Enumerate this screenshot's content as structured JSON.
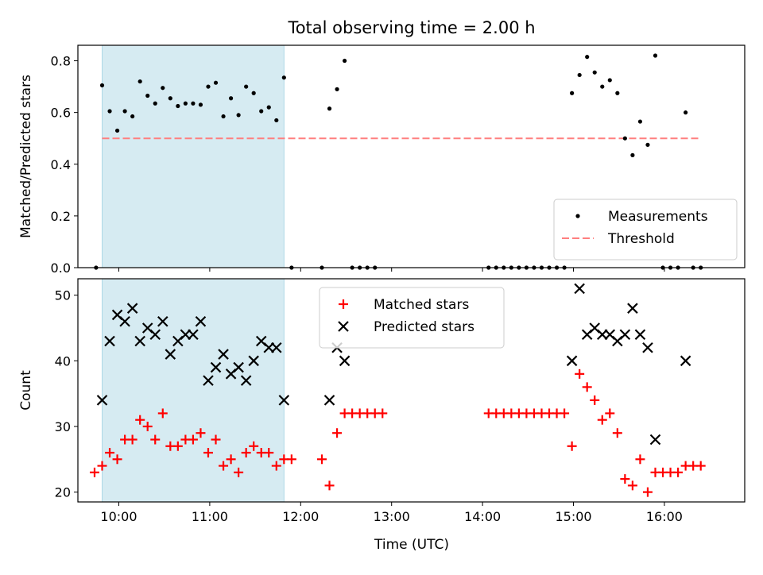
{
  "chart_data": {
    "title": "Total observing time = 2.00 h",
    "xlabel": "Time (UTC)",
    "x_ticks": [
      "10:00",
      "11:00",
      "12:00",
      "13:00",
      "14:00",
      "15:00",
      "16:00"
    ],
    "x_range": [
      "09:33",
      "16:53"
    ],
    "highlight_span": [
      "09:49",
      "11:49"
    ],
    "panels": [
      {
        "type": "scatter",
        "ylabel": "Matched/Predicted stars",
        "ylim": [
          0,
          0.86
        ],
        "y_ticks": [
          "0.0",
          "0.2",
          "0.4",
          "0.6",
          "0.8"
        ],
        "legend_position": "lower-right",
        "threshold": {
          "name": "Threshold",
          "value": 0.5,
          "x_range": [
            "09:49",
            "16:23"
          ],
          "color": "#ff7f7f"
        },
        "series": [
          {
            "name": "Measurements",
            "marker": "dot",
            "color": "#000000",
            "points": [
              [
                "09:45",
                0.0
              ],
              [
                "09:49",
                0.705
              ],
              [
                "09:54",
                0.605
              ],
              [
                "09:59",
                0.53
              ],
              [
                "10:04",
                0.605
              ],
              [
                "10:09",
                0.585
              ],
              [
                "10:14",
                0.72
              ],
              [
                "10:19",
                0.665
              ],
              [
                "10:24",
                0.635
              ],
              [
                "10:29",
                0.695
              ],
              [
                "10:34",
                0.655
              ],
              [
                "10:39",
                0.625
              ],
              [
                "10:44",
                0.635
              ],
              [
                "10:49",
                0.635
              ],
              [
                "10:54",
                0.63
              ],
              [
                "10:59",
                0.7
              ],
              [
                "11:04",
                0.715
              ],
              [
                "11:09",
                0.585
              ],
              [
                "11:14",
                0.655
              ],
              [
                "11:19",
                0.59
              ],
              [
                "11:24",
                0.7
              ],
              [
                "11:29",
                0.675
              ],
              [
                "11:34",
                0.605
              ],
              [
                "11:39",
                0.62
              ],
              [
                "11:44",
                0.57
              ],
              [
                "11:49",
                0.735
              ],
              [
                "11:54",
                0.0
              ],
              [
                "12:14",
                0.0
              ],
              [
                "12:19",
                0.615
              ],
              [
                "12:24",
                0.69
              ],
              [
                "12:29",
                0.8
              ],
              [
                "12:34",
                0.0
              ],
              [
                "12:39",
                0.0
              ],
              [
                "12:44",
                0.0
              ],
              [
                "12:49",
                0.0
              ],
              [
                "14:04",
                0.0
              ],
              [
                "14:09",
                0.0
              ],
              [
                "14:14",
                0.0
              ],
              [
                "14:19",
                0.0
              ],
              [
                "14:24",
                0.0
              ],
              [
                "14:29",
                0.0
              ],
              [
                "14:34",
                0.0
              ],
              [
                "14:39",
                0.0
              ],
              [
                "14:44",
                0.0
              ],
              [
                "14:49",
                0.0
              ],
              [
                "14:54",
                0.0
              ],
              [
                "14:59",
                0.675
              ],
              [
                "15:04",
                0.745
              ],
              [
                "15:09",
                0.815
              ],
              [
                "15:14",
                0.755
              ],
              [
                "15:19",
                0.7
              ],
              [
                "15:24",
                0.725
              ],
              [
                "15:29",
                0.675
              ],
              [
                "15:34",
                0.5
              ],
              [
                "15:39",
                0.435
              ],
              [
                "15:44",
                0.565
              ],
              [
                "15:49",
                0.475
              ],
              [
                "15:54",
                0.82
              ],
              [
                "15:59",
                0.0
              ],
              [
                "16:04",
                0.0
              ],
              [
                "16:09",
                0.0
              ],
              [
                "16:14",
                0.6
              ],
              [
                "16:19",
                0.0
              ],
              [
                "16:24",
                0.0
              ]
            ]
          }
        ]
      },
      {
        "type": "scatter",
        "ylabel": "Count",
        "ylim": [
          18.5,
          52.5
        ],
        "y_ticks": [
          "20",
          "30",
          "40",
          "50"
        ],
        "legend_position": "upper-center",
        "series": [
          {
            "name": "Matched stars",
            "marker": "plus",
            "color": "#ff0000",
            "points": [
              [
                "09:44",
                23
              ],
              [
                "09:49",
                24
              ],
              [
                "09:54",
                26
              ],
              [
                "09:59",
                25
              ],
              [
                "10:04",
                28
              ],
              [
                "10:09",
                28
              ],
              [
                "10:14",
                31
              ],
              [
                "10:19",
                30
              ],
              [
                "10:24",
                28
              ],
              [
                "10:29",
                32
              ],
              [
                "10:34",
                27
              ],
              [
                "10:39",
                27
              ],
              [
                "10:44",
                28
              ],
              [
                "10:49",
                28
              ],
              [
                "10:54",
                29
              ],
              [
                "10:59",
                26
              ],
              [
                "11:04",
                28
              ],
              [
                "11:09",
                24
              ],
              [
                "11:14",
                25
              ],
              [
                "11:19",
                23
              ],
              [
                "11:24",
                26
              ],
              [
                "11:29",
                27
              ],
              [
                "11:34",
                26
              ],
              [
                "11:39",
                26
              ],
              [
                "11:44",
                24
              ],
              [
                "11:49",
                25
              ],
              [
                "11:54",
                25
              ],
              [
                "12:14",
                25
              ],
              [
                "12:19",
                21
              ],
              [
                "12:24",
                29
              ],
              [
                "12:29",
                32
              ],
              [
                "12:34",
                32
              ],
              [
                "12:39",
                32
              ],
              [
                "12:44",
                32
              ],
              [
                "12:49",
                32
              ],
              [
                "12:54",
                32
              ],
              [
                "14:04",
                32
              ],
              [
                "14:09",
                32
              ],
              [
                "14:14",
                32
              ],
              [
                "14:19",
                32
              ],
              [
                "14:24",
                32
              ],
              [
                "14:29",
                32
              ],
              [
                "14:34",
                32
              ],
              [
                "14:39",
                32
              ],
              [
                "14:44",
                32
              ],
              [
                "14:49",
                32
              ],
              [
                "14:54",
                32
              ],
              [
                "14:59",
                27
              ],
              [
                "15:04",
                38
              ],
              [
                "15:09",
                36
              ],
              [
                "15:14",
                34
              ],
              [
                "15:19",
                31
              ],
              [
                "15:24",
                32
              ],
              [
                "15:29",
                29
              ],
              [
                "15:34",
                22
              ],
              [
                "15:39",
                21
              ],
              [
                "15:44",
                25
              ],
              [
                "15:49",
                20
              ],
              [
                "15:54",
                23
              ],
              [
                "15:59",
                23
              ],
              [
                "16:04",
                23
              ],
              [
                "16:09",
                23
              ],
              [
                "16:14",
                24
              ],
              [
                "16:19",
                24
              ],
              [
                "16:24",
                24
              ]
            ]
          },
          {
            "name": "Predicted stars",
            "marker": "x",
            "color": "#000000",
            "points": [
              [
                "09:49",
                34
              ],
              [
                "09:54",
                43
              ],
              [
                "09:59",
                47
              ],
              [
                "10:04",
                46
              ],
              [
                "10:09",
                48
              ],
              [
                "10:14",
                43
              ],
              [
                "10:19",
                45
              ],
              [
                "10:24",
                44
              ],
              [
                "10:29",
                46
              ],
              [
                "10:34",
                41
              ],
              [
                "10:39",
                43
              ],
              [
                "10:44",
                44
              ],
              [
                "10:49",
                44
              ],
              [
                "10:54",
                46
              ],
              [
                "10:59",
                37
              ],
              [
                "11:04",
                39
              ],
              [
                "11:09",
                41
              ],
              [
                "11:14",
                38
              ],
              [
                "11:19",
                39
              ],
              [
                "11:24",
                37
              ],
              [
                "11:29",
                40
              ],
              [
                "11:34",
                43
              ],
              [
                "11:39",
                42
              ],
              [
                "11:44",
                42
              ],
              [
                "11:49",
                34
              ],
              [
                "12:19",
                34
              ],
              [
                "12:24",
                42
              ],
              [
                "12:29",
                40
              ],
              [
                "14:59",
                40
              ],
              [
                "15:04",
                51
              ],
              [
                "15:09",
                44
              ],
              [
                "15:14",
                45
              ],
              [
                "15:19",
                44
              ],
              [
                "15:24",
                44
              ],
              [
                "15:29",
                43
              ],
              [
                "15:34",
                44
              ],
              [
                "15:39",
                48
              ],
              [
                "15:44",
                44
              ],
              [
                "15:49",
                42
              ],
              [
                "15:54",
                28
              ],
              [
                "16:14",
                40
              ]
            ]
          }
        ]
      }
    ]
  }
}
